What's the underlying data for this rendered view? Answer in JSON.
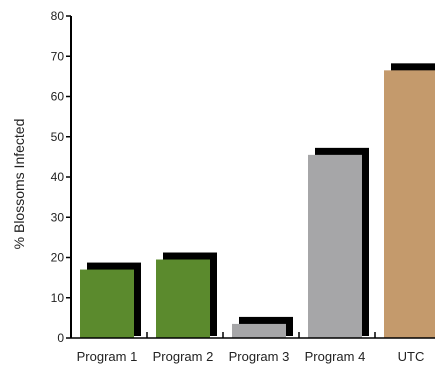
{
  "chart_data": {
    "type": "bar",
    "title": "",
    "xlabel": "",
    "ylabel": "% Blossoms Infected",
    "ylim": [
      0,
      80
    ],
    "yticks": [
      0,
      10,
      20,
      30,
      40,
      50,
      60,
      70,
      80
    ],
    "yticklabels": [
      "0",
      "10",
      "20",
      "30",
      "40",
      "50",
      "60",
      "70",
      "80"
    ],
    "categories": [
      "Program 1",
      "Program 2",
      "Program 3",
      "Program 4",
      "UTC"
    ],
    "values": [
      17,
      19.5,
      3.5,
      45.5,
      66.5
    ],
    "colors": [
      "#5b8a2d",
      "#5b8a2d",
      "#a6a6a8",
      "#a6a6a8",
      "#c49a6c"
    ],
    "shadow_color": "#000000",
    "grid": false,
    "legend": "none"
  }
}
